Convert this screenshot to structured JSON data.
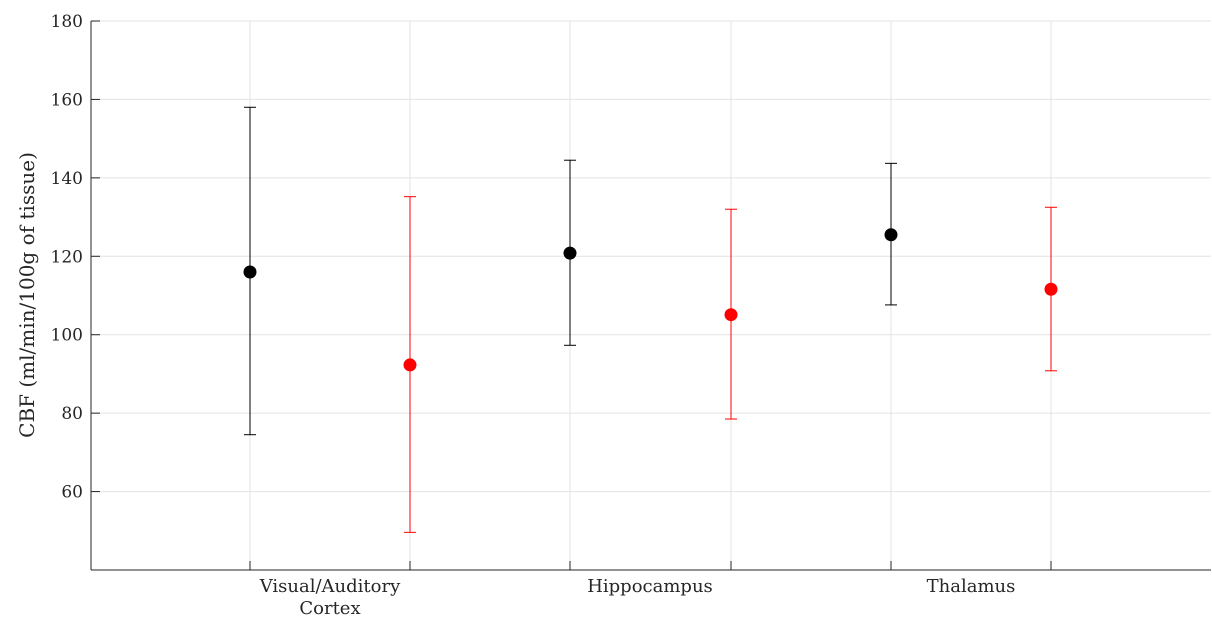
{
  "chart_data": {
    "type": "errorbar",
    "ylabel": "CBF (ml/min/100g of tissue)",
    "xlabel": "",
    "ylim": [
      40,
      180
    ],
    "yticks": [
      60,
      80,
      100,
      120,
      140,
      160,
      180
    ],
    "categories": [
      {
        "lines": [
          "Visual/Auditory",
          "Cortex"
        ]
      },
      {
        "lines": [
          "Hippocampus"
        ]
      },
      {
        "lines": [
          "Thalamus"
        ]
      }
    ],
    "grid": true,
    "series": [
      {
        "color": "#000000",
        "points": [
          {
            "category": 0,
            "mean": 116,
            "low": 74.5,
            "high": 158
          },
          {
            "category": 1,
            "mean": 120.8,
            "low": 97.3,
            "high": 144.5
          },
          {
            "category": 2,
            "mean": 125.5,
            "low": 107.6,
            "high": 143.7
          }
        ]
      },
      {
        "color": "#ff0000",
        "points": [
          {
            "category": 0,
            "mean": 92.3,
            "low": 49.6,
            "high": 135.2
          },
          {
            "category": 1,
            "mean": 105.1,
            "low": 78.5,
            "high": 132
          },
          {
            "category": 2,
            "mean": 111.6,
            "low": 90.8,
            "high": 132.5
          }
        ]
      }
    ]
  }
}
